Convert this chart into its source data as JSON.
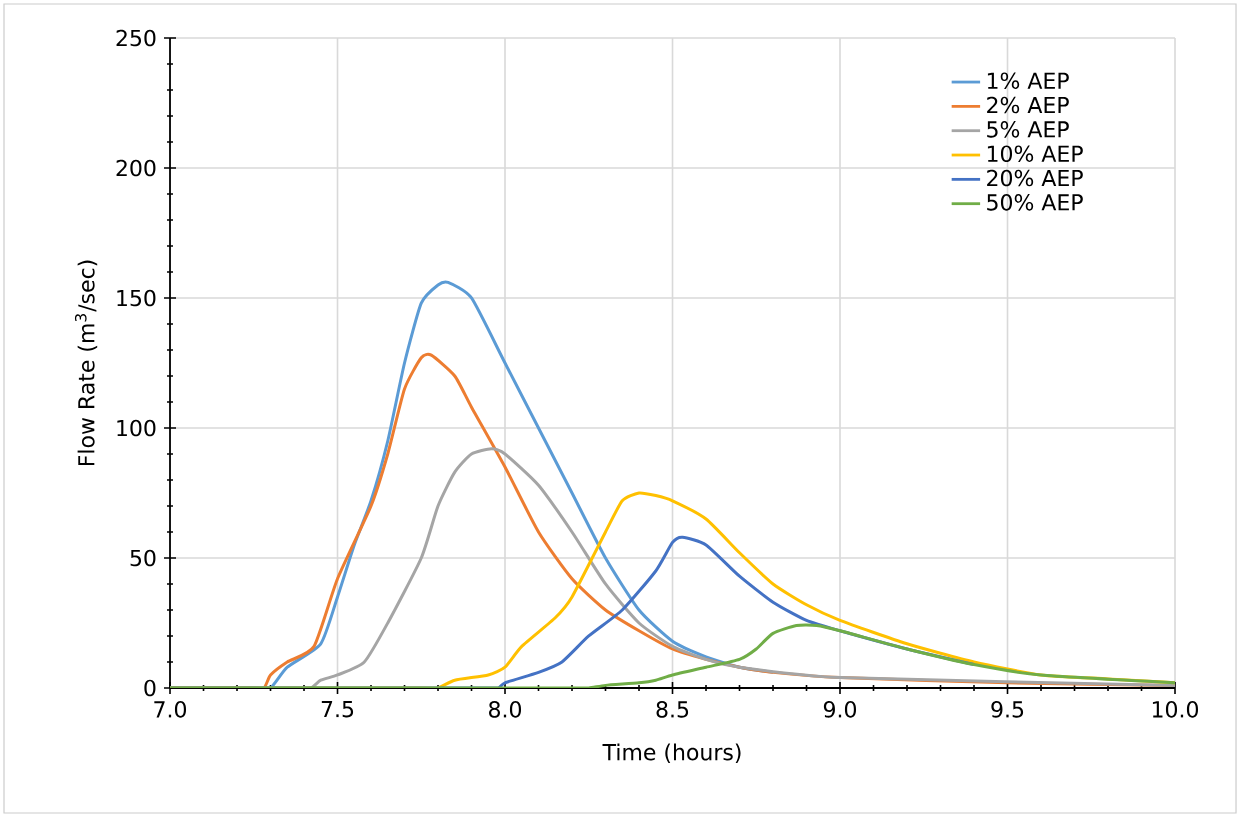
{
  "chart_data": {
    "type": "line",
    "xlabel": "Time (hours)",
    "ylabel": "Flow Rate (m$^{3}$/sec)",
    "xlim": [
      7,
      10
    ],
    "ylim": [
      0,
      250
    ],
    "xticks": [
      {
        "value": 7,
        "label": "7.0"
      },
      {
        "value": 7.5,
        "label": "7.5"
      },
      {
        "value": 8,
        "label": "8.0"
      },
      {
        "value": 8.5,
        "label": "8.5"
      },
      {
        "value": 9,
        "label": "9.0"
      },
      {
        "value": 9.5,
        "label": "9.5"
      },
      {
        "value": 10,
        "label": "10.0"
      }
    ],
    "yticks": [
      0,
      50,
      100,
      150,
      200,
      250
    ],
    "grid": true,
    "legend": "top right",
    "marker": "none",
    "line_style": "solid",
    "series": [
      {
        "name": "1% AEP",
        "color": "#5b9bd5",
        "x": [
          7,
          7.25,
          7.3,
          7.35,
          7.45,
          7.5,
          7.55,
          7.6,
          7.65,
          7.7,
          7.75,
          7.8,
          7.83,
          7.9,
          8,
          8.1,
          8.2,
          8.3,
          8.4,
          8.5,
          8.6,
          8.7,
          8.8
        ],
        "values": [
          0,
          0,
          0,
          8,
          17,
          35,
          55,
          72,
          95,
          125,
          148,
          155,
          156,
          150,
          125,
          100,
          75,
          50,
          30,
          18,
          12,
          8,
          6
        ]
      },
      {
        "name": "2% AEP",
        "color": "#ed7d31",
        "x": [
          7,
          7.23,
          7.28,
          7.3,
          7.35,
          7.43,
          7.5,
          7.6,
          7.65,
          7.7,
          7.75,
          7.78,
          7.85,
          7.9,
          8,
          8.1,
          8.2,
          8.3,
          8.4,
          8.5,
          8.6,
          8.7,
          8.8,
          9,
          9.5,
          10
        ],
        "values": [
          0,
          0,
          0,
          5,
          10,
          16,
          42,
          70,
          90,
          115,
          127,
          128,
          120,
          108,
          85,
          60,
          42,
          30,
          22,
          15,
          11,
          8,
          6,
          4,
          2,
          1
        ]
      },
      {
        "name": "5% AEP",
        "color": "#a5a5a5",
        "x": [
          7,
          7.37,
          7.42,
          7.45,
          7.5,
          7.58,
          7.65,
          7.75,
          7.8,
          7.85,
          7.9,
          7.96,
          8,
          8.1,
          8.2,
          8.3,
          8.4,
          8.5,
          8.6,
          8.7,
          9,
          10
        ],
        "values": [
          0,
          0,
          0,
          3,
          5,
          10,
          25,
          50,
          70,
          83,
          90,
          92,
          90,
          78,
          60,
          40,
          25,
          16,
          11,
          8,
          4,
          1
        ]
      },
      {
        "name": "10% AEP",
        "color": "#ffc000",
        "x": [
          7,
          7.75,
          7.8,
          7.85,
          7.95,
          8,
          8.05,
          8.15,
          8.2,
          8.3,
          8.35,
          8.4,
          8.45,
          8.5,
          8.6,
          8.7,
          8.8,
          8.9,
          9,
          9.2,
          9.4,
          9.6,
          9.8,
          10
        ],
        "values": [
          0,
          0,
          0,
          3,
          5,
          8,
          16,
          27,
          35,
          60,
          72,
          75,
          74,
          72,
          65,
          52,
          40,
          32,
          26,
          17,
          10,
          5,
          3.5,
          2
        ]
      },
      {
        "name": "20% AEP",
        "color": "#4472c4",
        "x": [
          7,
          7.93,
          7.98,
          8,
          8.1,
          8.17,
          8.25,
          8.35,
          8.45,
          8.5,
          8.53,
          8.6,
          8.7,
          8.8,
          8.9,
          9,
          9.2,
          9.4
        ],
        "values": [
          0,
          0,
          0,
          2,
          6,
          10,
          20,
          30,
          45,
          56,
          58,
          55,
          43,
          33,
          26,
          22,
          15,
          9
        ]
      },
      {
        "name": "50% AEP",
        "color": "#70ad47",
        "x": [
          7,
          8.2,
          8.25,
          8.3,
          8.4,
          8.45,
          8.5,
          8.6,
          8.7,
          8.75,
          8.8,
          8.87,
          8.93,
          9,
          9.2,
          9.4,
          9.6,
          10
        ],
        "values": [
          0,
          0,
          0,
          1,
          2,
          3,
          5,
          8,
          11,
          15,
          21,
          24,
          24,
          22,
          15,
          9,
          5,
          2
        ]
      }
    ]
  }
}
